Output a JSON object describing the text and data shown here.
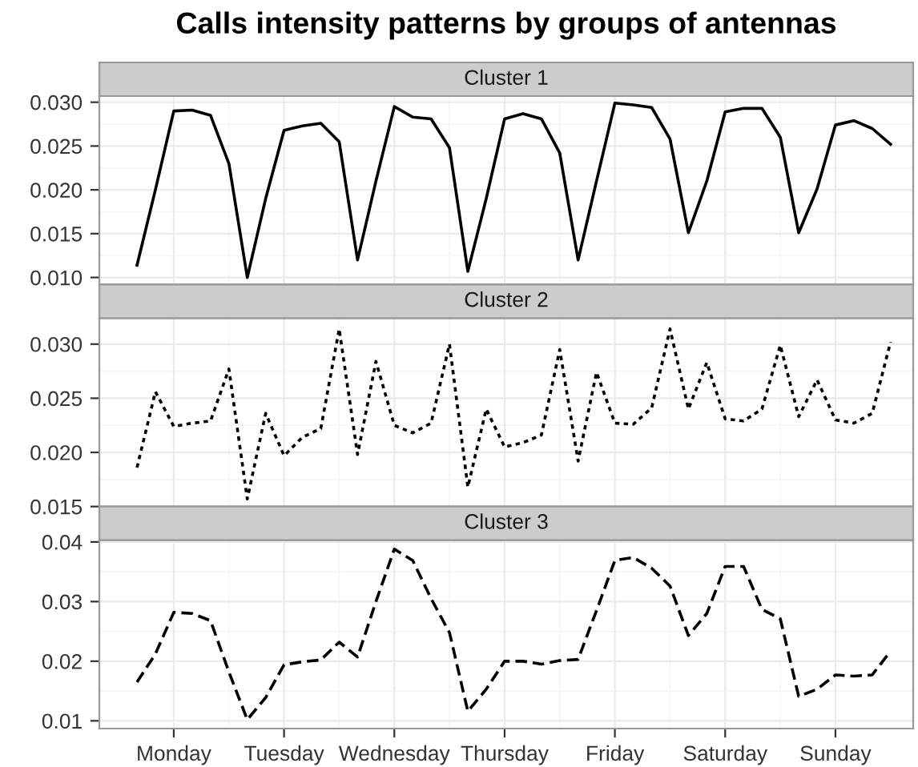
{
  "chart_data": [
    {
      "type": "line",
      "title": "Calls intensity patterns by groups of antennas",
      "subtitle": "Cluster 1",
      "categories": [
        null,
        null,
        null,
        null,
        null,
        null,
        null,
        null,
        null,
        null,
        null,
        null,
        null,
        null,
        null,
        null,
        null,
        null,
        null,
        null,
        null,
        null,
        null,
        null,
        null,
        null,
        null,
        null,
        null,
        null,
        null,
        null,
        null,
        null,
        null,
        null,
        null,
        null,
        null,
        null,
        null,
        null
      ],
      "ylim": [
        0.0092,
        0.0307
      ],
      "yticks": [
        {
          "value": 0.01,
          "label": "0.010"
        },
        {
          "value": 0.015,
          "label": "0.015"
        },
        {
          "value": 0.02,
          "label": "0.020"
        },
        {
          "value": 0.025,
          "label": "0.025"
        },
        {
          "value": 0.03,
          "label": "0.030"
        }
      ],
      "tick_labels": "y",
      "grid": true,
      "line_style": "solid",
      "series": [
        {
          "color": "#000000",
          "values": [
            0.0114,
            0.02,
            0.029,
            0.0291,
            0.0285,
            0.023,
            0.01,
            0.019,
            0.0268,
            0.0273,
            0.0276,
            0.0255,
            0.012,
            0.021,
            0.0295,
            0.0283,
            0.0281,
            0.0248,
            0.0107,
            0.019,
            0.0281,
            0.0287,
            0.0281,
            0.0242,
            0.012,
            0.021,
            0.0299,
            0.0297,
            0.0294,
            0.0258,
            0.0151,
            0.021,
            0.0289,
            0.0293,
            0.0293,
            0.026,
            0.0151,
            0.0201,
            0.0274,
            0.0279,
            0.027,
            0.0252
          ]
        }
      ]
    },
    {
      "type": "line",
      "subtitle": "Cluster 2",
      "categories": [
        null,
        null,
        null,
        null,
        null,
        null,
        null,
        null,
        null,
        null,
        null,
        null,
        null,
        null,
        null,
        null,
        null,
        null,
        null,
        null,
        null,
        null,
        null,
        null,
        null,
        null,
        null,
        null,
        null,
        null,
        null,
        null,
        null,
        null,
        null,
        null,
        null,
        null,
        null,
        null,
        null,
        null
      ],
      "ylim": [
        0.015,
        0.0324
      ],
      "yticks": [
        {
          "value": 0.015,
          "label": "0.015"
        },
        {
          "value": 0.02,
          "label": "0.020"
        },
        {
          "value": 0.025,
          "label": "0.025"
        },
        {
          "value": 0.03,
          "label": "0.030"
        }
      ],
      "tick_labels": "y",
      "grid": true,
      "line_style": "dotted",
      "series": [
        {
          "color": "#000000",
          "values": [
            0.0186,
            0.0256,
            0.0224,
            0.0227,
            0.0229,
            0.0277,
            0.0157,
            0.0236,
            0.0197,
            0.0214,
            0.0222,
            0.0314,
            0.0198,
            0.0284,
            0.0225,
            0.0218,
            0.0227,
            0.03,
            0.0168,
            0.024,
            0.0205,
            0.0209,
            0.0216,
            0.0295,
            0.0192,
            0.0274,
            0.0227,
            0.0226,
            0.0241,
            0.0314,
            0.024,
            0.0283,
            0.0231,
            0.0229,
            0.024,
            0.0299,
            0.0233,
            0.0267,
            0.023,
            0.0227,
            0.0236,
            0.0302
          ]
        }
      ]
    },
    {
      "type": "line",
      "subtitle": "Cluster 3",
      "categories": [
        null,
        null,
        "Monday",
        null,
        null,
        null,
        null,
        null,
        "Tuesday",
        null,
        null,
        null,
        null,
        null,
        "Wednesday",
        null,
        null,
        null,
        null,
        null,
        "Thursday",
        null,
        null,
        null,
        null,
        null,
        "Friday",
        null,
        null,
        null,
        null,
        null,
        "Saturday",
        null,
        null,
        null,
        null,
        null,
        "Sunday",
        null,
        null,
        null
      ],
      "ylim": [
        0.0087,
        0.0403
      ],
      "yticks": [
        0.01,
        0.02,
        0.03,
        0.04
      ],
      "grid": true,
      "line_style": "dashed",
      "series": [
        {
          "color": "#000000",
          "values": [
            0.0165,
            0.0212,
            0.0282,
            0.028,
            0.0268,
            0.0182,
            0.0102,
            0.0139,
            0.0194,
            0.0199,
            0.0202,
            0.0232,
            0.0207,
            0.03,
            0.0388,
            0.0369,
            0.0305,
            0.0248,
            0.0116,
            0.0153,
            0.02,
            0.02,
            0.0195,
            0.0201,
            0.0203,
            0.0285,
            0.0369,
            0.0374,
            0.0356,
            0.0326,
            0.0243,
            0.028,
            0.0359,
            0.0359,
            0.0287,
            0.0271,
            0.0141,
            0.0153,
            0.0177,
            0.0175,
            0.0177,
            0.0217
          ]
        }
      ]
    }
  ]
}
